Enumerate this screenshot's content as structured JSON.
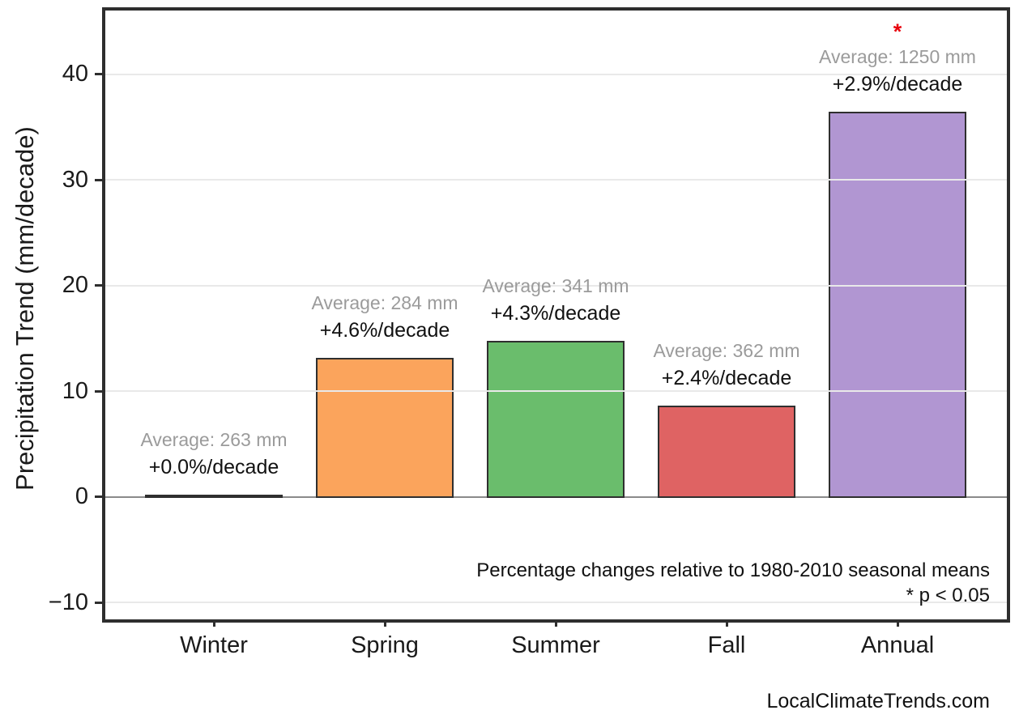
{
  "chart_data": {
    "type": "bar",
    "categories": [
      "Winter",
      "Spring",
      "Summer",
      "Fall",
      "Annual"
    ],
    "values": [
      0.1,
      13.1,
      14.7,
      8.6,
      36.4
    ],
    "value_unit": "mm/decade",
    "bar_colors": [
      "#2e2e2e",
      "#fba45c",
      "#6abd6c",
      "#df6363",
      "#b196d2"
    ],
    "bar_edge_color": "#2f2f2f",
    "annotations": [
      {
        "average": "Average: 263 mm",
        "trend": "+0.0%/decade",
        "significant": false
      },
      {
        "average": "Average: 284 mm",
        "trend": "+4.6%/decade",
        "significant": false
      },
      {
        "average": "Average: 341 mm",
        "trend": "+4.3%/decade",
        "significant": false
      },
      {
        "average": "Average: 362 mm",
        "trend": "+2.4%/decade",
        "significant": false
      },
      {
        "average": "Average: 1250 mm",
        "trend": "+2.9%/decade",
        "significant": true
      }
    ],
    "significance_marker": "*",
    "ylabel": "Precipitation Trend (mm/decade)",
    "yticks": {
      "values": [
        40,
        30,
        20,
        10,
        0,
        -10
      ],
      "labels": [
        "40",
        "30",
        "20",
        "10",
        "0",
        "−10"
      ]
    },
    "ylim": [
      -11.6,
      46.1
    ],
    "grid": {
      "horizontal": true,
      "color": "#e9e9e9",
      "zero_line_color": "#8a8a8a"
    },
    "colors": {
      "annotation_gray": "#9b9b9b",
      "significance_red": "#e8000b",
      "axis": "#2e2e2e"
    },
    "notes": [
      "Percentage changes relative to 1980-2010 seasonal means",
      "* p < 0.05"
    ],
    "watermark": "LocalClimateTrends.com"
  }
}
